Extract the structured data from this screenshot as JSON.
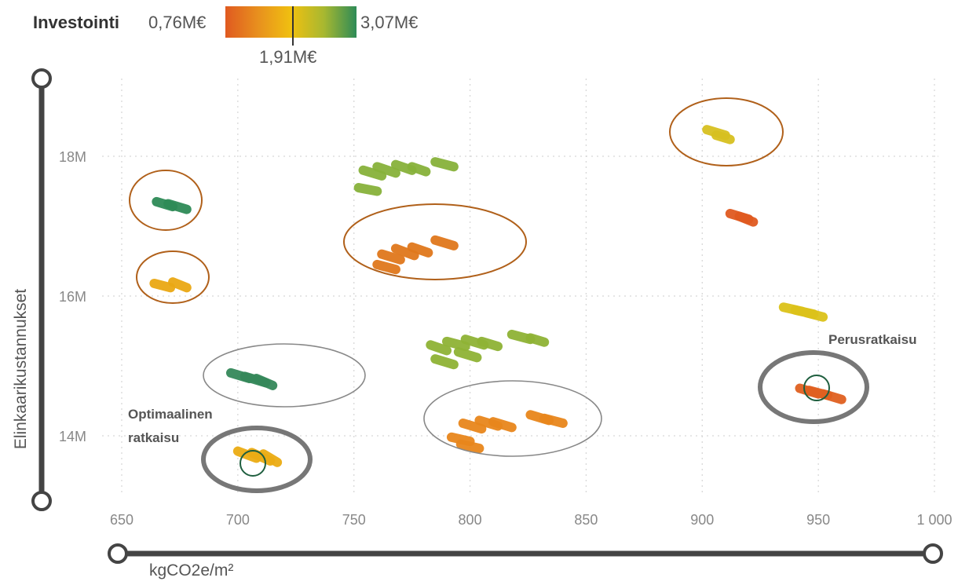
{
  "chart_data": {
    "type": "scatter",
    "xlabel": "kgCO2e/m²",
    "ylabel": "Elinkaarikustannukset",
    "xlim": [
      650,
      1000
    ],
    "ylim": [
      13000000,
      19000000
    ],
    "x_ticks": [
      650,
      700,
      750,
      800,
      850,
      900,
      950,
      1000
    ],
    "x_tick_labels": [
      "650",
      "700",
      "750",
      "800",
      "850",
      "900",
      "950",
      "1 000"
    ],
    "y_ticks": [
      14000000,
      16000000,
      18000000
    ],
    "y_tick_labels": [
      "14M",
      "16M",
      "18M"
    ],
    "grid": true,
    "color_legend": {
      "title": "Investointi",
      "min_label": "0,76M€",
      "mid_label": "1,91M€",
      "max_label": "3,07M€",
      "colors": [
        "#e05a20",
        "#e8901e",
        "#f0c010",
        "#a8b830",
        "#2e8b57"
      ]
    },
    "clusters": [
      {
        "x": [
          665,
          678
        ],
        "y": [
          17.35,
          17.2
        ],
        "color": "#2e8b57",
        "strokes": [
          [
            665,
            17.35,
            672,
            17.28
          ],
          [
            670,
            17.32,
            678,
            17.24
          ]
        ]
      },
      {
        "x": [
          664,
          678
        ],
        "y": [
          16.2,
          16.1
        ],
        "color": "#eaa814",
        "strokes": [
          [
            664,
            16.18,
            671,
            16.12
          ],
          [
            672,
            16.2,
            678,
            16.12
          ]
        ]
      },
      {
        "x": [
          697,
          715
        ],
        "y": [
          14.9,
          14.7
        ],
        "color": "#35885a",
        "strokes": [
          [
            697,
            14.9,
            705,
            14.82
          ],
          [
            703,
            14.85,
            712,
            14.76
          ],
          [
            708,
            14.82,
            715,
            14.72
          ]
        ]
      },
      {
        "x": [
          700,
          717
        ],
        "y": [
          13.8,
          13.6
        ],
        "color": "#ecac14",
        "strokes": [
          [
            700,
            13.78,
            708,
            13.68
          ],
          [
            706,
            13.76,
            714,
            13.64
          ],
          [
            711,
            13.74,
            717,
            13.62
          ]
        ]
      },
      {
        "x": [
          752,
          792
        ],
        "y": [
          17.9,
          17.5
        ],
        "color": "#87b23a",
        "strokes": [
          [
            752,
            17.55,
            760,
            17.5
          ],
          [
            754,
            17.8,
            762,
            17.72
          ],
          [
            760,
            17.85,
            768,
            17.76
          ],
          [
            768,
            17.88,
            775,
            17.8
          ],
          [
            775,
            17.85,
            781,
            17.78
          ],
          [
            785,
            17.92,
            793,
            17.85
          ]
        ]
      },
      {
        "x": [
          760,
          792
        ],
        "y": [
          16.8,
          16.4
        ],
        "color": "#e0781c",
        "strokes": [
          [
            760,
            16.45,
            768,
            16.38
          ],
          [
            762,
            16.6,
            770,
            16.52
          ],
          [
            768,
            16.68,
            776,
            16.58
          ],
          [
            775,
            16.7,
            782,
            16.62
          ],
          [
            785,
            16.8,
            793,
            16.72
          ]
        ]
      },
      {
        "x": [
          783,
          832
        ],
        "y": [
          15.4,
          14.9
        ],
        "color": "#8fb335",
        "strokes": [
          [
            783,
            15.3,
            790,
            15.22
          ],
          [
            785,
            15.1,
            793,
            15.02
          ],
          [
            790,
            15.35,
            798,
            15.28
          ],
          [
            795,
            15.2,
            803,
            15.12
          ],
          [
            798,
            15.38,
            806,
            15.3
          ],
          [
            805,
            15.35,
            812,
            15.28
          ],
          [
            818,
            15.45,
            826,
            15.38
          ],
          [
            826,
            15.4,
            832,
            15.34
          ]
        ]
      },
      {
        "x": [
          792,
          840
        ],
        "y": [
          14.3,
          13.8
        ],
        "color": "#e8861c",
        "strokes": [
          [
            792,
            13.98,
            800,
            13.92
          ],
          [
            796,
            13.88,
            804,
            13.82
          ],
          [
            797,
            14.18,
            805,
            14.1
          ],
          [
            804,
            14.22,
            812,
            14.14
          ],
          [
            810,
            14.2,
            818,
            14.12
          ],
          [
            826,
            14.3,
            834,
            14.22
          ],
          [
            832,
            14.25,
            840,
            14.18
          ]
        ]
      },
      {
        "x": [
          902,
          912
        ],
        "y": [
          18.4,
          18.2
        ],
        "color": "#d7c020",
        "strokes": [
          [
            902,
            18.38,
            910,
            18.3
          ],
          [
            906,
            18.3,
            912,
            18.24
          ]
        ]
      },
      {
        "x": [
          912,
          922
        ],
        "y": [
          17.2,
          17.0
        ],
        "color": "#e05a20",
        "strokes": [
          [
            912,
            17.18,
            920,
            17.1
          ],
          [
            916,
            17.14,
            922,
            17.06
          ]
        ]
      },
      {
        "x": [
          935,
          952
        ],
        "y": [
          15.85,
          15.7
        ],
        "color": "#dcc21a",
        "strokes": [
          [
            935,
            15.84,
            943,
            15.78
          ],
          [
            940,
            15.8,
            948,
            15.74
          ],
          [
            945,
            15.76,
            952,
            15.7
          ]
        ]
      },
      {
        "x": [
          942,
          960
        ],
        "y": [
          14.7,
          14.5
        ],
        "color": "#e06020",
        "strokes": [
          [
            942,
            14.68,
            950,
            14.6
          ],
          [
            946,
            14.65,
            954,
            14.58
          ],
          [
            952,
            14.6,
            960,
            14.52
          ]
        ]
      }
    ],
    "annotations": [
      {
        "label": "Optimaalinen",
        "label2": "ratkaisu"
      },
      {
        "label": "Perusratkaisu"
      }
    ]
  }
}
